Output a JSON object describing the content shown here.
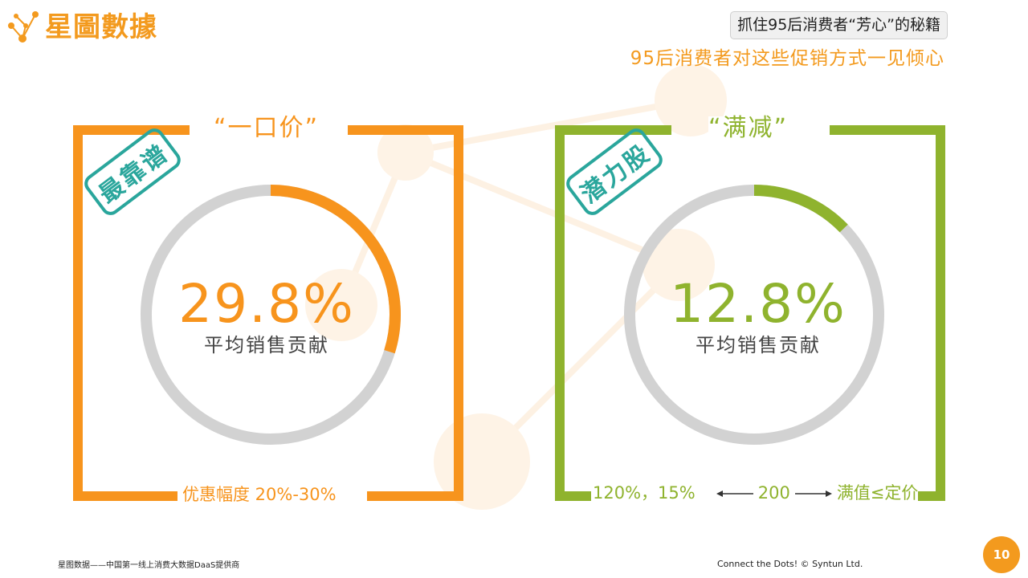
{
  "brand": {
    "name": "星圖數據",
    "color": "#f39a1e"
  },
  "header": {
    "chip_text": "抓住95后消费者“芳心”的秘籍",
    "subtitle": "95后消费者对这些促销方式一见倾心"
  },
  "colors": {
    "orange": "#f7941d",
    "green": "#8fb32e",
    "teal": "#2aa69c",
    "ring_gray": "#d2d2d2"
  },
  "panels": [
    {
      "title": "“一口价”",
      "stamp": "最靠谱",
      "percent_text": "29.8%",
      "percent_value": 29.8,
      "label": "平均销售贡献",
      "bottom": "优惠幅度 20%-30%"
    },
    {
      "title": "“满减”",
      "stamp": "潜力股",
      "percent_text": "12.8%",
      "percent_value": 12.8,
      "label": "平均销售贡献",
      "bottom_left": "120%，15%",
      "bottom_mid": "200",
      "bottom_right": "满值≤定价"
    }
  ],
  "footer": {
    "left": "星图数据——中国第一线上消费大数据DaaS提供商",
    "right": "Connect the Dots!  © Syntun Ltd.",
    "page": "10"
  }
}
